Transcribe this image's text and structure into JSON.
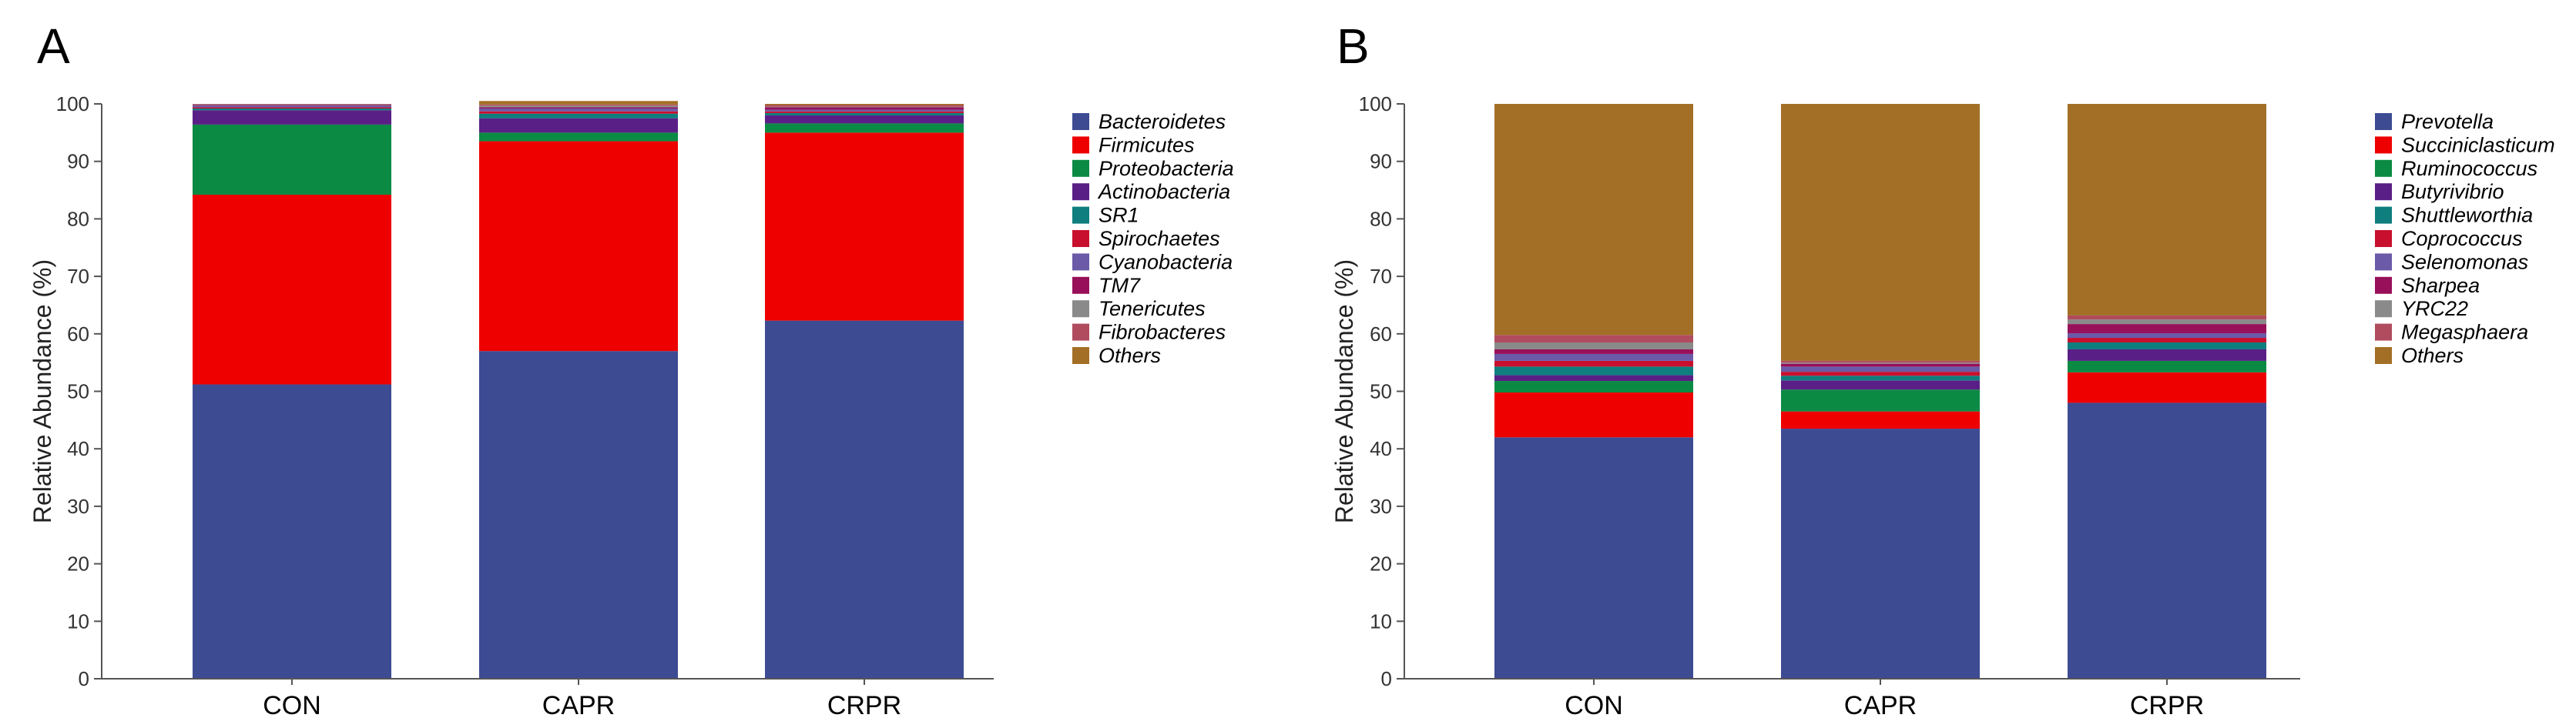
{
  "chart_data": [
    {
      "type": "bar",
      "stacked": true,
      "panel_label": "A",
      "ylabel": "Relative Abundance (%)",
      "ylim": [
        0,
        100
      ],
      "yticks": [
        "0",
        "10",
        "20",
        "30",
        "40",
        "50",
        "60",
        "70",
        "80",
        "90",
        "100"
      ],
      "categories": [
        "CON",
        "CAPR",
        "CRPR"
      ],
      "series": [
        {
          "name": "Bacteroidetes",
          "color": "#3d4b93",
          "values": [
            51.2,
            57.0,
            62.3
          ]
        },
        {
          "name": "Firmicutes",
          "color": "#ee0000",
          "values": [
            33.0,
            36.5,
            32.7
          ]
        },
        {
          "name": "Proteobacteria",
          "color": "#0b8a44",
          "values": [
            12.2,
            1.5,
            1.6
          ]
        },
        {
          "name": "Actinobacteria",
          "color": "#5a1f86",
          "values": [
            2.5,
            2.5,
            1.4
          ]
        },
        {
          "name": "SR1",
          "color": "#0e7e7e",
          "values": [
            0.3,
            0.8,
            0.4
          ]
        },
        {
          "name": "Spirochaetes",
          "color": "#c8102e",
          "values": [
            0.2,
            0.4,
            0.3
          ]
        },
        {
          "name": "Cyanobacteria",
          "color": "#6a5aa8",
          "values": [
            0.3,
            0.5,
            0.3
          ]
        },
        {
          "name": "TM7",
          "color": "#99105a",
          "values": [
            0.1,
            0.2,
            0.4
          ]
        },
        {
          "name": "Tenericutes",
          "color": "#8a8a8a",
          "values": [
            0.1,
            0.3,
            0.1
          ]
        },
        {
          "name": "Fibrobacteres",
          "color": "#b04c5e",
          "values": [
            0.1,
            0.2,
            0.3
          ]
        },
        {
          "name": "Others",
          "color": "#a36f26",
          "values": [
            0.0,
            0.6,
            0.2
          ]
        }
      ]
    },
    {
      "type": "bar",
      "stacked": true,
      "panel_label": "B",
      "ylabel": "Relative Abundance (%)",
      "ylim": [
        0,
        100
      ],
      "yticks": [
        "0",
        "10",
        "20",
        "30",
        "40",
        "50",
        "60",
        "70",
        "80",
        "90",
        "100"
      ],
      "categories": [
        "CON",
        "CAPR",
        "CRPR"
      ],
      "series": [
        {
          "name": "Prevotella",
          "color": "#3d4b93",
          "values": [
            42.0,
            43.5,
            48.0
          ]
        },
        {
          "name": "Succiniclasticum",
          "color": "#ee0000",
          "values": [
            7.8,
            3.0,
            5.3
          ]
        },
        {
          "name": "Ruminococcus",
          "color": "#0b8a44",
          "values": [
            2.0,
            3.8,
            2.0
          ]
        },
        {
          "name": "Butyrivibrio",
          "color": "#5a1f86",
          "values": [
            1.0,
            1.6,
            2.0
          ]
        },
        {
          "name": "Shuttleworthia",
          "color": "#0e7e7e",
          "values": [
            1.5,
            0.8,
            1.2
          ]
        },
        {
          "name": "Coprococcus",
          "color": "#c8102e",
          "values": [
            1.0,
            0.7,
            0.8
          ]
        },
        {
          "name": "Selenomonas",
          "color": "#6a5aa8",
          "values": [
            1.2,
            0.9,
            0.8
          ]
        },
        {
          "name": "Sharpea",
          "color": "#99105a",
          "values": [
            0.8,
            0.5,
            1.6
          ]
        },
        {
          "name": "YRC22",
          "color": "#8a8a8a",
          "values": [
            1.2,
            0.2,
            0.8
          ]
        },
        {
          "name": "Megasphaera",
          "color": "#b04c5e",
          "values": [
            1.3,
            0.3,
            0.7
          ]
        },
        {
          "name": "Others",
          "color": "#a36f26",
          "values": [
            40.2,
            44.7,
            36.8
          ]
        }
      ]
    }
  ]
}
